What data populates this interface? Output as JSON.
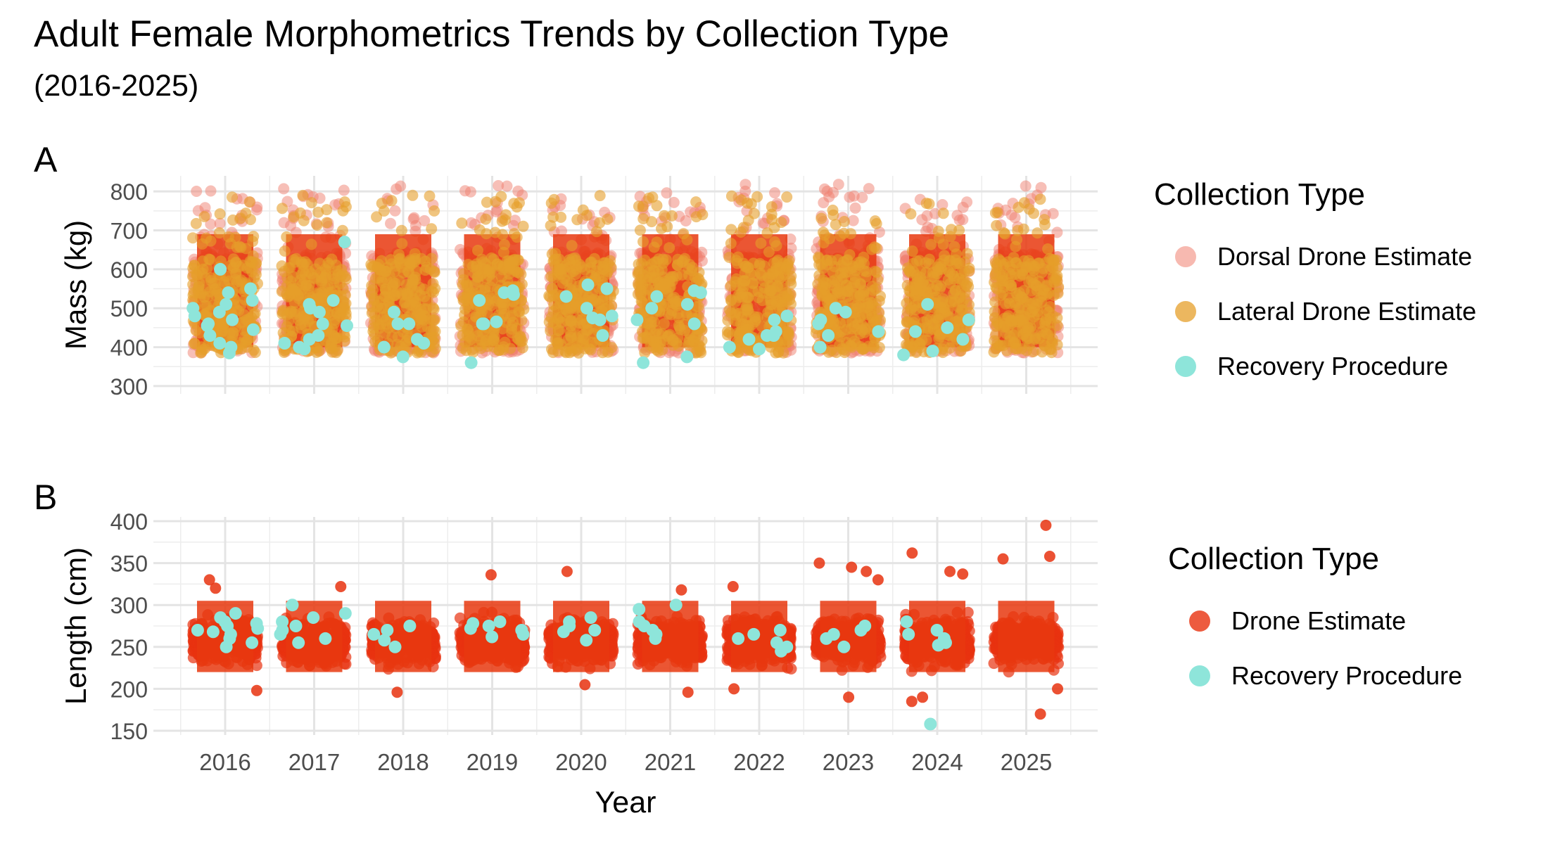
{
  "title": "Adult Female Morphometrics Trends by Collection Type",
  "subtitle": "(2016-2025)",
  "chart_data": [
    {
      "type": "scatter",
      "panel": "A",
      "xlabel": "",
      "ylabel": "Mass (kg)",
      "x": [
        "2016",
        "2017",
        "2018",
        "2019",
        "2020",
        "2021",
        "2022",
        "2023",
        "2024",
        "2025"
      ],
      "ylim": [
        280,
        840
      ],
      "yticks": [
        300,
        400,
        500,
        600,
        700,
        800
      ],
      "grid": true,
      "legend": {
        "title": "Collection Type",
        "position": "right",
        "entries": [
          "Dorsal Drone Estimate",
          "Lateral Drone Estimate",
          "Recovery Procedure"
        ]
      },
      "series": [
        {
          "name": "Dorsal Drone Estimate",
          "color": "#F08070",
          "opacity": 0.5,
          "note_range": [
            385,
            820
          ]
        },
        {
          "name": "Lateral Drone Estimate",
          "color": "#E69F2A",
          "opacity": 0.6,
          "note_range": [
            385,
            790
          ]
        },
        {
          "name": "Recovery Procedure",
          "color": "#8EE5DA",
          "points": [
            [
              2016,
              430
            ],
            [
              2016,
              445
            ],
            [
              2016,
              460
            ],
            [
              2016,
              480
            ],
            [
              2016,
              500
            ],
            [
              2016,
              520
            ],
            [
              2016,
              550
            ],
            [
              2016,
              540
            ],
            [
              2016,
              600
            ],
            [
              2016,
              410
            ],
            [
              2016,
              400
            ],
            [
              2016,
              385
            ],
            [
              2016,
              490
            ],
            [
              2016,
              470
            ],
            [
              2016,
              510
            ],
            [
              2016,
              455
            ],
            [
              2017,
              500
            ],
            [
              2017,
              520
            ],
            [
              2017,
              510
            ],
            [
              2017,
              460
            ],
            [
              2017,
              455
            ],
            [
              2017,
              420
            ],
            [
              2017,
              670
            ],
            [
              2017,
              490
            ],
            [
              2017,
              400
            ],
            [
              2017,
              430
            ],
            [
              2017,
              410
            ],
            [
              2017,
              395
            ],
            [
              2018,
              490
            ],
            [
              2018,
              460
            ],
            [
              2018,
              420
            ],
            [
              2018,
              410
            ],
            [
              2018,
              400
            ],
            [
              2018,
              460
            ],
            [
              2018,
              375
            ],
            [
              2019,
              540
            ],
            [
              2019,
              520
            ],
            [
              2019,
              545
            ],
            [
              2019,
              535
            ],
            [
              2019,
              460
            ],
            [
              2019,
              460
            ],
            [
              2019,
              465
            ],
            [
              2019,
              360
            ],
            [
              2020,
              480
            ],
            [
              2020,
              470
            ],
            [
              2020,
              560
            ],
            [
              2020,
              550
            ],
            [
              2020,
              530
            ],
            [
              2020,
              500
            ],
            [
              2020,
              430
            ],
            [
              2020,
              475
            ],
            [
              2021,
              540
            ],
            [
              2021,
              530
            ],
            [
              2021,
              500
            ],
            [
              2021,
              470
            ],
            [
              2021,
              545
            ],
            [
              2021,
              510
            ],
            [
              2021,
              460
            ],
            [
              2021,
              375
            ],
            [
              2021,
              360
            ],
            [
              2022,
              440
            ],
            [
              2022,
              430
            ],
            [
              2022,
              480
            ],
            [
              2022,
              470
            ],
            [
              2022,
              430
            ],
            [
              2022,
              420
            ],
            [
              2022,
              400
            ],
            [
              2022,
              395
            ],
            [
              2023,
              490
            ],
            [
              2023,
              460
            ],
            [
              2023,
              470
            ],
            [
              2023,
              440
            ],
            [
              2023,
              500
            ],
            [
              2023,
              430
            ],
            [
              2023,
              400
            ],
            [
              2024,
              470
            ],
            [
              2024,
              440
            ],
            [
              2024,
              510
            ],
            [
              2024,
              420
            ],
            [
              2024,
              390
            ],
            [
              2024,
              380
            ],
            [
              2024,
              450
            ]
          ]
        }
      ]
    },
    {
      "type": "scatter",
      "panel": "B",
      "xlabel": "Year",
      "ylabel": "Length (cm)",
      "x": [
        "2016",
        "2017",
        "2018",
        "2019",
        "2020",
        "2021",
        "2022",
        "2023",
        "2024",
        "2025"
      ],
      "ylim": [
        145,
        405
      ],
      "yticks": [
        150,
        200,
        250,
        300,
        350,
        400
      ],
      "grid": true,
      "legend": {
        "title": "Collection Type",
        "position": "right",
        "entries": [
          "Drone Estimate",
          "Recovery Procedure"
        ]
      },
      "series": [
        {
          "name": "Drone Estimate",
          "color": "#E8320F",
          "opacity": 0.7,
          "note_range": [
            195,
            320
          ],
          "outliers": [
            [
              2016,
              330
            ],
            [
              2016,
              320
            ],
            [
              2016,
              198
            ],
            [
              2017,
              322
            ],
            [
              2018,
              196
            ],
            [
              2019,
              336
            ],
            [
              2020,
              340
            ],
            [
              2020,
              205
            ],
            [
              2021,
              318
            ],
            [
              2021,
              196
            ],
            [
              2022,
              322
            ],
            [
              2022,
              200
            ],
            [
              2023,
              350
            ],
            [
              2023,
              340
            ],
            [
              2023,
              345
            ],
            [
              2023,
              330
            ],
            [
              2023,
              190
            ],
            [
              2024,
              362
            ],
            [
              2024,
              340
            ],
            [
              2024,
              337
            ],
            [
              2024,
              190
            ],
            [
              2024,
              185
            ],
            [
              2025,
              395
            ],
            [
              2025,
              358
            ],
            [
              2025,
              355
            ],
            [
              2025,
              170
            ],
            [
              2025,
              200
            ]
          ]
        },
        {
          "name": "Recovery Procedure",
          "color": "#8EE5DA",
          "points": [
            [
              2016,
              285
            ],
            [
              2016,
              270
            ],
            [
              2016,
              260
            ],
            [
              2016,
              280
            ],
            [
              2016,
              275
            ],
            [
              2016,
              255
            ],
            [
              2016,
              265
            ],
            [
              2016,
              250
            ],
            [
              2016,
              290
            ],
            [
              2016,
              272
            ],
            [
              2016,
              268
            ],
            [
              2016,
              278
            ],
            [
              2017,
              300
            ],
            [
              2017,
              285
            ],
            [
              2017,
              275
            ],
            [
              2017,
              265
            ],
            [
              2017,
              290
            ],
            [
              2017,
              280
            ],
            [
              2017,
              255
            ],
            [
              2017,
              260
            ],
            [
              2017,
              270
            ],
            [
              2018,
              275
            ],
            [
              2018,
              265
            ],
            [
              2018,
              270
            ],
            [
              2018,
              250
            ],
            [
              2018,
              258
            ],
            [
              2019,
              280
            ],
            [
              2019,
              275
            ],
            [
              2019,
              270
            ],
            [
              2019,
              265
            ],
            [
              2019,
              262
            ],
            [
              2019,
              278
            ],
            [
              2019,
              272
            ],
            [
              2020,
              285
            ],
            [
              2020,
              270
            ],
            [
              2020,
              275
            ],
            [
              2020,
              268
            ],
            [
              2020,
              280
            ],
            [
              2020,
              258
            ],
            [
              2021,
              300
            ],
            [
              2021,
              295
            ],
            [
              2021,
              275
            ],
            [
              2021,
              270
            ],
            [
              2021,
              265
            ],
            [
              2021,
              280
            ],
            [
              2021,
              260
            ],
            [
              2022,
              270
            ],
            [
              2022,
              265
            ],
            [
              2022,
              255
            ],
            [
              2022,
              260
            ],
            [
              2022,
              250
            ],
            [
              2022,
              245
            ],
            [
              2023,
              275
            ],
            [
              2023,
              265
            ],
            [
              2023,
              260
            ],
            [
              2023,
              270
            ],
            [
              2023,
              250
            ],
            [
              2024,
              280
            ],
            [
              2024,
              270
            ],
            [
              2024,
              265
            ],
            [
              2024,
              260
            ],
            [
              2024,
              252
            ],
            [
              2024,
              255
            ],
            [
              2024,
              158
            ]
          ]
        }
      ]
    }
  ]
}
